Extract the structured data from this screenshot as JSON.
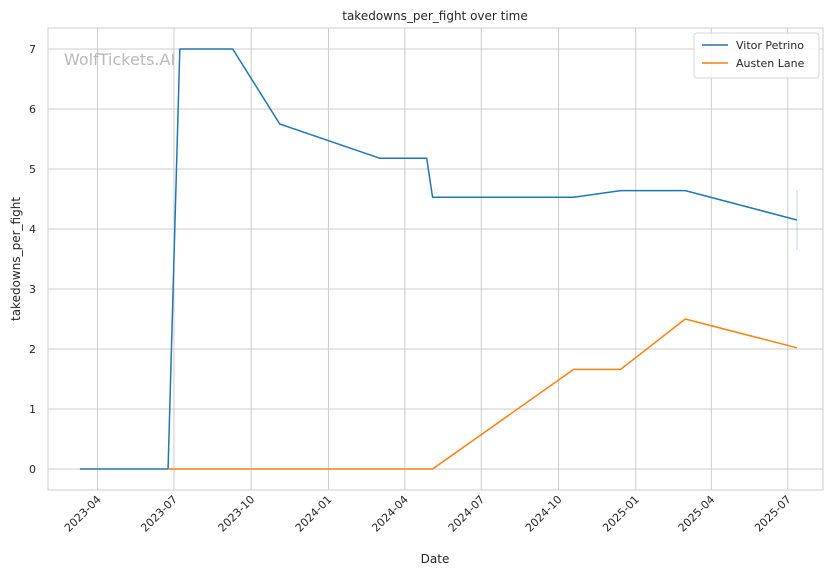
{
  "watermark": "WolfTickets.AI",
  "colors": {
    "series_1": "#1f77b4",
    "series_2": "#ff7f0e",
    "grid": "#cccccc",
    "axes": "#cccccc",
    "background": "#ffffff",
    "text": "#262626"
  },
  "chart_data": {
    "type": "line",
    "title": "takedowns_per_fight over time",
    "xlabel": "Date",
    "ylabel": "takedowns_per_fight",
    "grid": true,
    "legend_position": "top-right",
    "x_axis": {
      "type": "date",
      "range": [
        "2023-02-01",
        "2025-08-12"
      ],
      "ticks": [
        "2023-04-01",
        "2023-07-01",
        "2023-10-01",
        "2024-01-01",
        "2024-04-01",
        "2024-07-01",
        "2024-10-01",
        "2025-01-01",
        "2025-04-01",
        "2025-07-01"
      ],
      "tick_labels": [
        "2023-04",
        "2023-07",
        "2023-10",
        "2024-01",
        "2024-04",
        "2024-07",
        "2024-10",
        "2025-01",
        "2025-04",
        "2025-07"
      ]
    },
    "y_axis": {
      "range": [
        -0.35,
        7.35
      ],
      "ticks": [
        0,
        1,
        2,
        3,
        4,
        5,
        6,
        7
      ],
      "tick_labels": [
        "0",
        "1",
        "2",
        "3",
        "4",
        "5",
        "6",
        "7"
      ]
    },
    "series": [
      {
        "name": "Vitor Petrino",
        "color": "#1f77b4",
        "points": [
          {
            "x": "2023-03-11",
            "y": 0
          },
          {
            "x": "2023-06-24",
            "y": 0
          },
          {
            "x": "2023-07-08",
            "y": 7
          },
          {
            "x": "2023-09-09",
            "y": 7
          },
          {
            "x": "2023-11-04",
            "y": 5.75
          },
          {
            "x": "2024-03-02",
            "y": 5.18
          },
          {
            "x": "2024-04-27",
            "y": 5.18
          },
          {
            "x": "2024-05-04",
            "y": 4.53
          },
          {
            "x": "2024-10-19",
            "y": 4.53
          },
          {
            "x": "2024-12-14",
            "y": 4.64
          },
          {
            "x": "2025-03-01",
            "y": 4.64
          },
          {
            "x": "2025-07-12",
            "y": 4.15
          }
        ],
        "error_bar": {
          "x": "2025-07-12",
          "low": 3.65,
          "high": 4.65
        }
      },
      {
        "name": "Austen Lane",
        "color": "#ff7f0e",
        "points": [
          {
            "x": "2023-06-24",
            "y": 0
          },
          {
            "x": "2024-05-04",
            "y": 0
          },
          {
            "x": "2024-10-19",
            "y": 1.66
          },
          {
            "x": "2024-12-14",
            "y": 1.66
          },
          {
            "x": "2025-03-01",
            "y": 2.5
          },
          {
            "x": "2025-07-12",
            "y": 2.02
          }
        ]
      }
    ]
  }
}
